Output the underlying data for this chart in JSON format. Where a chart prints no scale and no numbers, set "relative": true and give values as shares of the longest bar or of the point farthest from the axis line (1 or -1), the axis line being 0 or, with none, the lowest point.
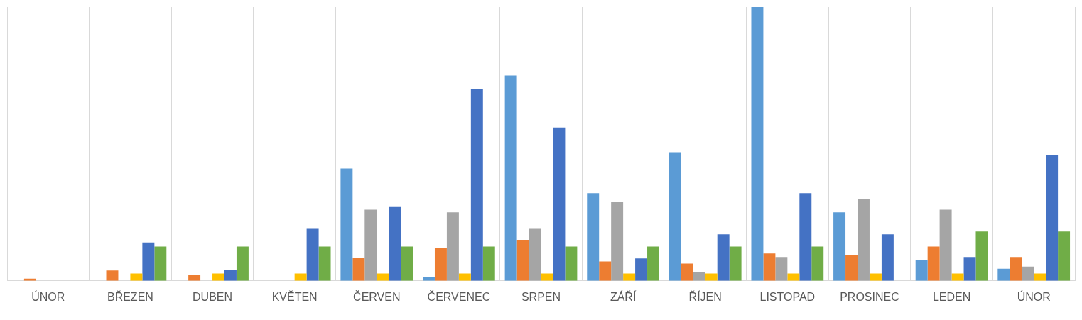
{
  "chart_data": {
    "type": "bar",
    "relative": true,
    "grid": "x",
    "legend": false,
    "categories": [
      "ÚNOR",
      "BŘEZEN",
      "DUBEN",
      "KVĚTEN",
      "ČERVEN",
      "ČERVENEC",
      "SRPEN",
      "ZÁŘÍ",
      "ŘÍJEN",
      "LISTOPAD",
      "PROSINEC",
      "LEDEN",
      "ÚNOR"
    ],
    "series": [
      {
        "color": "#5b9bd5",
        "values": [
          null,
          null,
          null,
          null,
          0.41,
          0.014,
          0.75,
          0.32,
          0.47,
          1,
          0.25,
          0.076,
          0.044
        ]
      },
      {
        "color": "#ed7d31",
        "values": [
          0.008,
          0.038,
          0.022,
          null,
          0.084,
          0.12,
          0.15,
          0.071,
          0.063,
          0.1,
          0.093,
          0.125,
          0.087
        ]
      },
      {
        "color": "#a5a5a5",
        "values": [
          null,
          null,
          null,
          null,
          0.26,
          0.25,
          0.19,
          0.29,
          0.033,
          0.087,
          0.3,
          0.26,
          0.052
        ]
      },
      {
        "color": "#ffc000",
        "values": [
          null,
          0.027,
          0.027,
          0.027,
          0.027,
          0.027,
          0.027,
          0.027,
          0.027,
          0.027,
          0.027,
          0.027,
          0.027
        ]
      },
      {
        "color": "#4472c4",
        "values": [
          null,
          0.14,
          0.041,
          0.19,
          0.27,
          0.7,
          0.56,
          0.082,
          0.17,
          0.32,
          0.17,
          0.087,
          0.46
        ]
      },
      {
        "color": "#70ad47",
        "values": [
          null,
          0.125,
          0.125,
          0.125,
          0.125,
          0.125,
          0.125,
          0.125,
          0.125,
          0.125,
          null,
          0.18,
          0.18
        ]
      }
    ]
  }
}
